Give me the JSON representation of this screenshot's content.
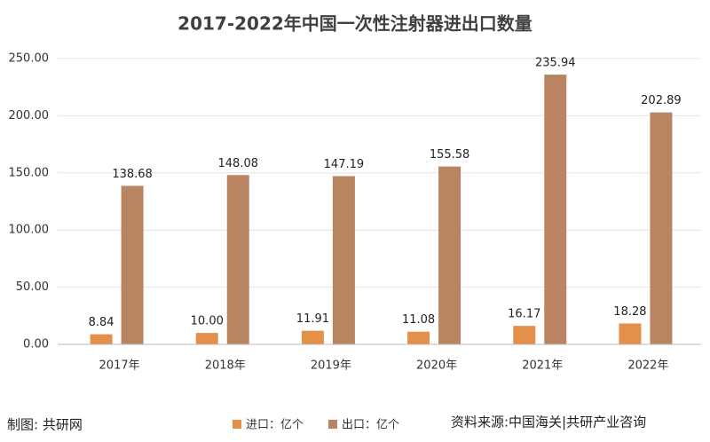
{
  "chart_data": {
    "type": "bar",
    "title": "2017-2022年中国一次性注射器进出口数量",
    "categories": [
      "2017年",
      "2018年",
      "2019年",
      "2020年",
      "2021年",
      "2022年"
    ],
    "series": [
      {
        "name": "进口：亿个",
        "color": "#e3904a",
        "values": [
          8.84,
          10,
          11.91,
          11.08,
          16.17,
          18.28
        ],
        "value_labels": [
          "8.84",
          "10.00",
          "11.91",
          "11.08",
          "16.17",
          "18.28"
        ]
      },
      {
        "name": "出口：亿个",
        "color": "#b98461",
        "values": [
          138.68,
          148.08,
          147.19,
          155.58,
          235.94,
          202.89
        ],
        "value_labels": [
          "138.68",
          "148.08",
          "147.19",
          "155.58",
          "235.94",
          "202.89"
        ]
      }
    ],
    "ylim": [
      0,
      250
    ],
    "yticks": [
      {
        "value": 0,
        "label": "0.00"
      },
      {
        "value": 50,
        "label": "50.00"
      },
      {
        "value": 100,
        "label": "100.00"
      },
      {
        "value": 150,
        "label": "150.00"
      },
      {
        "value": 200,
        "label": "200.00"
      },
      {
        "value": 250,
        "label": "250.00"
      }
    ],
    "grid": true,
    "legend": "bottom",
    "credit": "制图: 共研网",
    "source": "资料来源:中国海关|共研产业咨询"
  }
}
